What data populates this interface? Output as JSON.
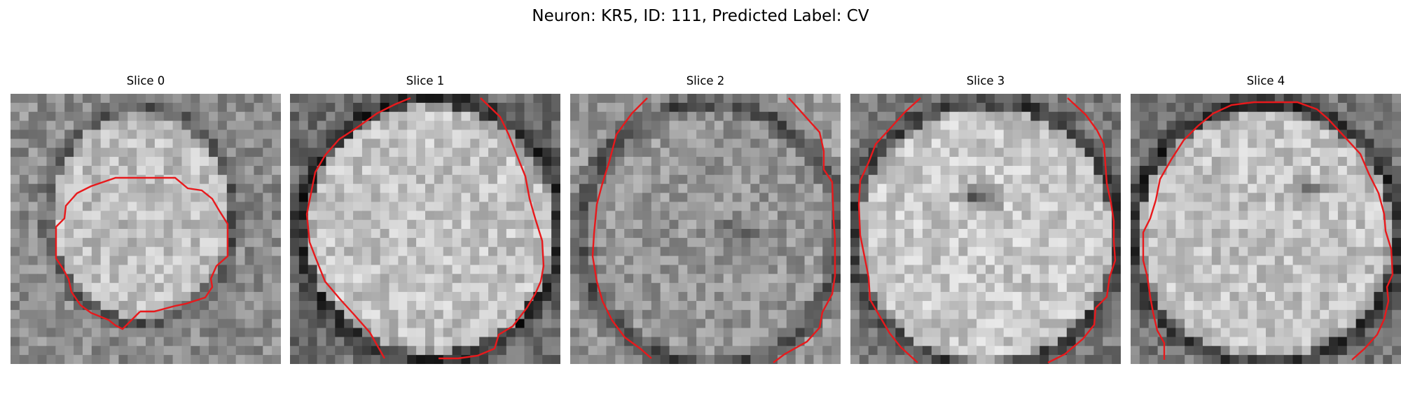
{
  "figure": {
    "title": "Neuron: KR5, ID: 111, Predicted Label: CV"
  },
  "panels": [
    {
      "title": "Slice 0"
    },
    {
      "title": "Slice 1"
    },
    {
      "title": "Slice 2"
    },
    {
      "title": "Slice 3"
    },
    {
      "title": "Slice 4"
    }
  ],
  "image": {
    "colormap": "gray",
    "grid": "30x30 pixel tiles",
    "contour_color": "#e8191c"
  }
}
